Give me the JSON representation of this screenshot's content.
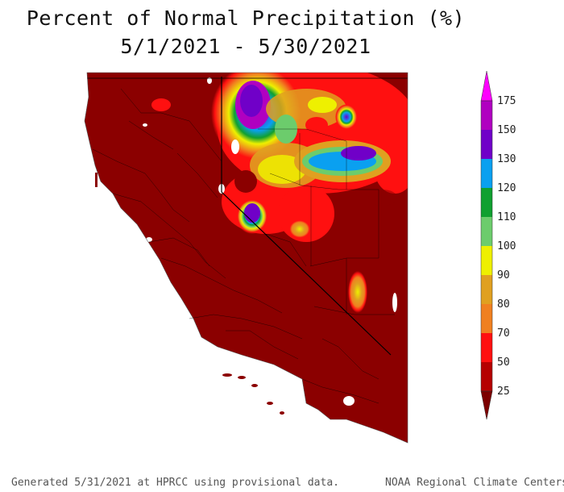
{
  "title": {
    "line1": "Percent of Normal Precipitation (%)",
    "line2": "5/1/2021 - 5/30/2021"
  },
  "colorbar": {
    "labels": [
      "175",
      "150",
      "130",
      "120",
      "110",
      "100",
      "90",
      "80",
      "70",
      "50",
      "25"
    ],
    "colors": {
      "above_175": "#ff00ff",
      "150_175": "#b000c0",
      "130_150": "#7000c8",
      "120_130": "#0aa0f0",
      "110_120": "#10a030",
      "100_110": "#6ccc6c",
      "90_100": "#eef000",
      "80_90": "#e0a020",
      "70_80": "#f08020",
      "50_70": "#ff1010",
      "25_50": "#b50000",
      "below_25": "#7c0000"
    }
  },
  "map": {
    "region": "California and Nevada",
    "background_color": "#8b0000",
    "water_color": "#ffffff",
    "state_line_color": "#000000"
  },
  "footer": {
    "left": "Generated 5/31/2021 at HPRCC using provisional data.",
    "right": "NOAA Regional Climate Centers"
  }
}
